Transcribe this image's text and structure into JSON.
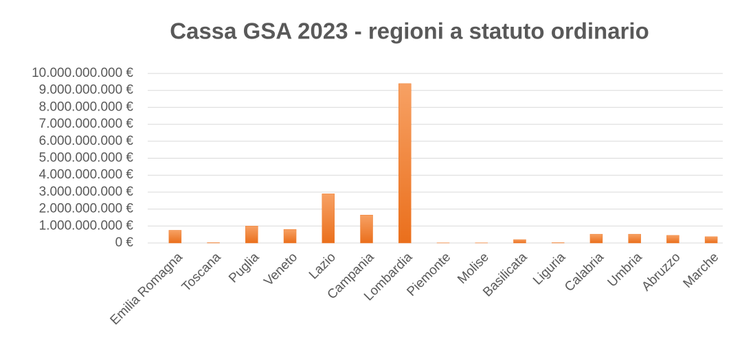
{
  "chart_data": {
    "type": "bar",
    "title": "Cassa GSA 2023 - regioni a statuto ordinario",
    "categories": [
      "Emilia Romagna",
      "Toscana",
      "Puglia",
      "Veneto",
      "Lazio",
      "Campania",
      "Lombardia",
      "Piemonte",
      "Molise",
      "Basilicata",
      "Liguria",
      "Calabria",
      "Umbria",
      "Abruzzo",
      "Marche"
    ],
    "values": [
      750000000,
      20000000,
      1000000000,
      800000000,
      2900000000,
      1650000000,
      9400000000,
      10000000,
      10000000,
      200000000,
      20000000,
      520000000,
      520000000,
      450000000,
      370000000
    ],
    "color": "#f07b2a",
    "ylim": [
      0,
      10000000000
    ],
    "yticks": [
      {
        "value": 0,
        "label": "0 €"
      },
      {
        "value": 1000000000,
        "label": "1.000.000.000 €"
      },
      {
        "value": 2000000000,
        "label": "2.000.000.000 €"
      },
      {
        "value": 3000000000,
        "label": "3.000.000.000 €"
      },
      {
        "value": 4000000000,
        "label": "4.000.000.000 €"
      },
      {
        "value": 5000000000,
        "label": "5.000.000.000 €"
      },
      {
        "value": 6000000000,
        "label": "6.000.000.000 €"
      },
      {
        "value": 7000000000,
        "label": "7.000.000.000 €"
      },
      {
        "value": 8000000000,
        "label": "8.000.000.000 €"
      },
      {
        "value": 9000000000,
        "label": "9.000.000.000 €"
      },
      {
        "value": 10000000000,
        "label": "10.000.000.000 €"
      }
    ],
    "grid": true
  }
}
